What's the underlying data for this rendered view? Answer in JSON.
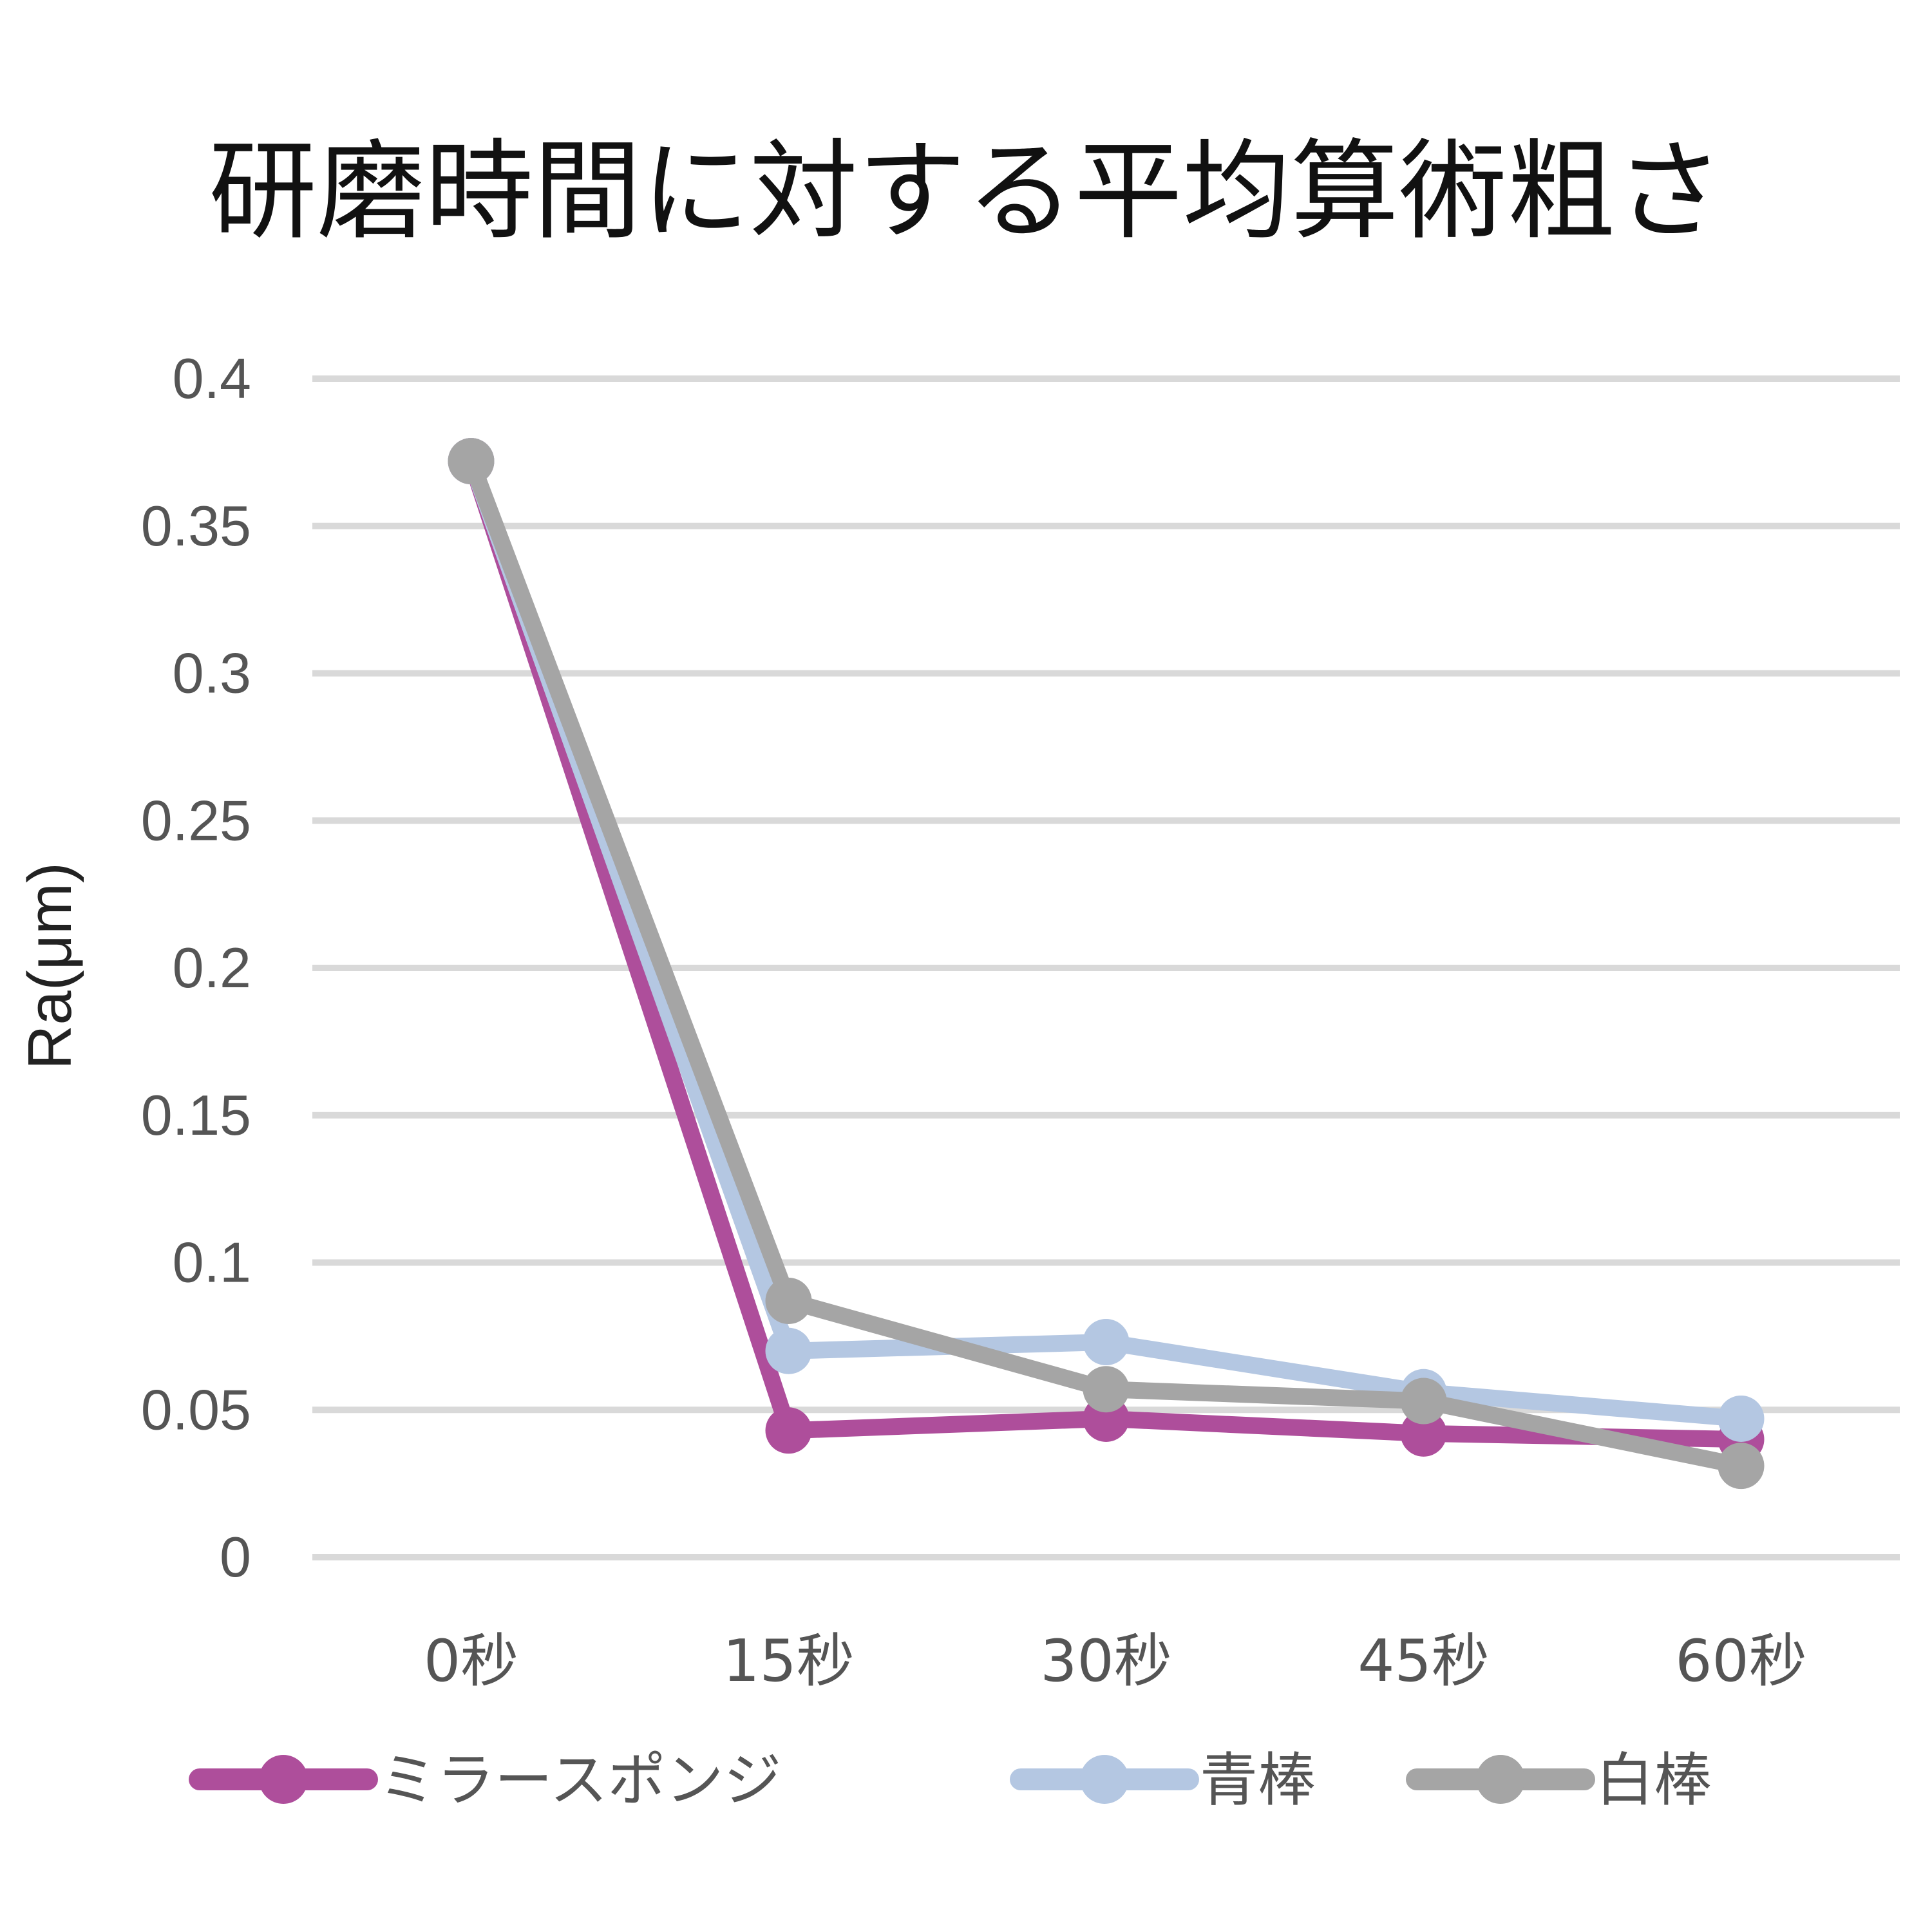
{
  "chart_data": {
    "type": "line",
    "title": "研磨時間に対する平均算術粗さ",
    "ylabel": "Ra(μm)",
    "xlabel": "",
    "categories": [
      "0秒",
      "15秒",
      "30秒",
      "45秒",
      "60秒"
    ],
    "ylim": [
      0,
      0.4
    ],
    "yticks": [
      "0",
      "0.05",
      "0.1",
      "0.15",
      "0.2",
      "0.25",
      "0.3",
      "0.35",
      "0.4"
    ],
    "grid": true,
    "legend_position": "bottom",
    "series": [
      {
        "name": "ミラースポンジ",
        "color": "#AE4E9B",
        "values": [
          0.372,
          0.043,
          0.047,
          0.042,
          0.04
        ]
      },
      {
        "name": "青棒",
        "color": "#B4C7E2",
        "values": [
          0.372,
          0.07,
          0.073,
          0.056,
          0.047
        ]
      },
      {
        "name": "白棒",
        "color": "#A5A5A5",
        "values": [
          0.372,
          0.087,
          0.057,
          0.053,
          0.031
        ]
      }
    ]
  }
}
